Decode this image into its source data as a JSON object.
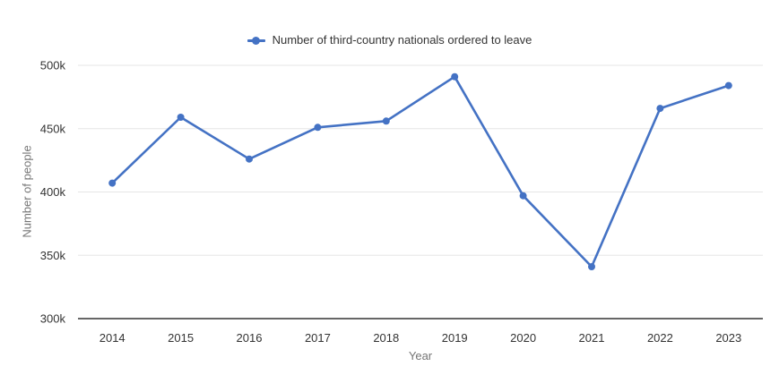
{
  "chart": {
    "legend_label": "Number of third-country nationals ordered to leave",
    "x_title": "Year",
    "y_title": "Number of people"
  },
  "chart_data": {
    "type": "line",
    "title": "",
    "categories": [
      "2014",
      "2015",
      "2016",
      "2017",
      "2018",
      "2019",
      "2020",
      "2021",
      "2022",
      "2023"
    ],
    "series": [
      {
        "name": "Number of third-country nationals ordered to leave",
        "values": [
          407000,
          459000,
          426000,
          451000,
          456000,
          491000,
          397000,
          341000,
          466000,
          484000
        ],
        "color": "#4472C4"
      }
    ],
    "xlabel": "Year",
    "ylabel": "Number of people",
    "ylim": [
      300000,
      500000
    ],
    "yticks": [
      {
        "value": 300000,
        "label": "300k"
      },
      {
        "value": 350000,
        "label": "350k"
      },
      {
        "value": 400000,
        "label": "400k"
      },
      {
        "value": 450000,
        "label": "450k"
      },
      {
        "value": 500000,
        "label": "500k"
      }
    ],
    "grid": true,
    "legend_position": "top-center"
  },
  "colors": {
    "series_blue": "#4472C4",
    "gridline": "#e6e6e6",
    "axis_line": "#333333",
    "tick_label": "#333333",
    "axis_title": "#757575",
    "background": "#ffffff"
  }
}
